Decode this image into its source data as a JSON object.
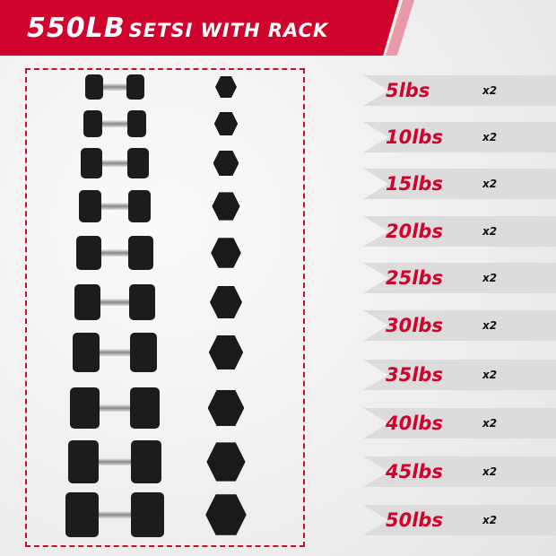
{
  "header": {
    "title_big": "550LB",
    "title_small": "SETSI WITH RACK",
    "color": "#d0032d"
  },
  "weights": [
    {
      "label": "5lbs",
      "qty": "x2"
    },
    {
      "label": "10lbs",
      "qty": "x2"
    },
    {
      "label": "15lbs",
      "qty": "x2"
    },
    {
      "label": "20lbs",
      "qty": "x2"
    },
    {
      "label": "25lbs",
      "qty": "x2"
    },
    {
      "label": "30lbs",
      "qty": "x2"
    },
    {
      "label": "35lbs",
      "qty": "x2"
    },
    {
      "label": "40lbs",
      "qty": "x2"
    },
    {
      "label": "45lbs",
      "qty": "x2"
    },
    {
      "label": "50lbs",
      "qty": "x2"
    }
  ]
}
